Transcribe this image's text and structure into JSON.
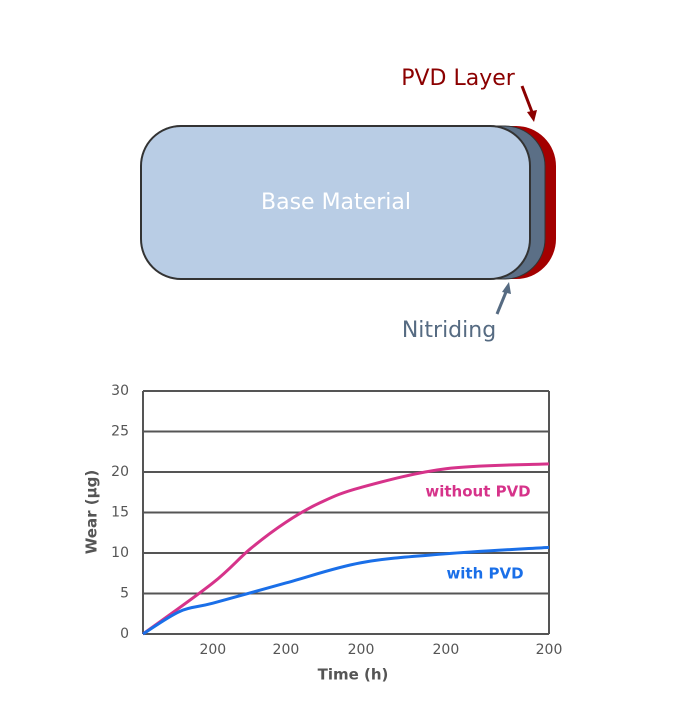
{
  "diagram": {
    "base_label": "Base Material",
    "pvd_label": "PVD Layer",
    "nitriding_label": "Nitriding"
  },
  "chart_data": {
    "type": "line",
    "x_label": "Time (h)",
    "y_label": "Wear (µg)",
    "xlim": [
      0,
      1000
    ],
    "xticks": [
      {
        "value": 172,
        "label": "200"
      },
      {
        "value": 352,
        "label": "200"
      },
      {
        "value": 537,
        "label": "200"
      },
      {
        "value": 746,
        "label": "200"
      },
      {
        "value": 1000,
        "label": "200"
      }
    ],
    "ylim": [
      0,
      30
    ],
    "yticks": [
      0,
      5,
      10,
      15,
      20,
      25,
      30
    ],
    "grid": true,
    "series": [
      {
        "name": "without PVD",
        "color": "#d6338a",
        "x": [
          0,
          172,
          264,
          352,
          436,
          537,
          746,
          1000
        ],
        "values": [
          0,
          6.3,
          10.5,
          13.8,
          16.2,
          18.1,
          20.4,
          21
        ]
      },
      {
        "name": "with PVD",
        "color": "#1a6fe8",
        "x": [
          0,
          91,
          172,
          352,
          537,
          746,
          1000
        ],
        "values": [
          0,
          2.8,
          3.8,
          6.3,
          8.8,
          9.9,
          10.7
        ]
      }
    ]
  }
}
